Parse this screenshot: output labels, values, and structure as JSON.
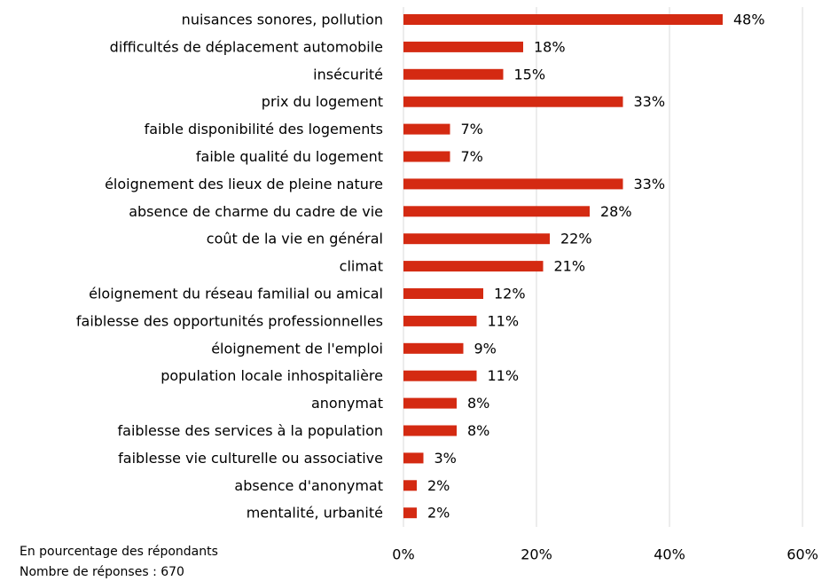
{
  "chart_data": {
    "type": "bar",
    "orientation": "horizontal",
    "categories": [
      "nuisances sonores, pollution",
      "difficultés de déplacement automobile",
      "insécurité",
      "prix du logement",
      "faible disponibilité des logements",
      "faible qualité du logement",
      "éloignement des lieux de pleine nature",
      "absence de charme du cadre de vie",
      "coût de la vie en général",
      "climat",
      "éloignement du réseau familial ou amical",
      "faiblesse des opportunités professionnelles",
      "éloignement de l'emploi",
      "population locale inhospitalière",
      "anonymat",
      "faiblesse des services à la population",
      "faiblesse vie culturelle ou associative",
      "absence d'anonymat",
      "mentalité, urbanité"
    ],
    "values": [
      48,
      18,
      15,
      33,
      7,
      7,
      33,
      28,
      22,
      21,
      12,
      11,
      9,
      11,
      8,
      8,
      3,
      2,
      2
    ],
    "value_labels": [
      "48%",
      "18%",
      "15%",
      "33%",
      "7%",
      "7%",
      "33%",
      "28%",
      "22%",
      "21%",
      "12%",
      "11%",
      "9%",
      "11%",
      "8%",
      "8%",
      "3%",
      "2%",
      "2%"
    ],
    "color": "#d42a12",
    "xlim": [
      0,
      60
    ],
    "xticks": [
      {
        "value": 0,
        "label": "0%"
      },
      {
        "value": 20,
        "label": "20%"
      },
      {
        "value": 40,
        "label": "40%"
      },
      {
        "value": 60,
        "label": "60%"
      }
    ],
    "grid": true,
    "notes": [
      "En pourcentage des répondants",
      "Nombre de réponses : 670"
    ]
  }
}
